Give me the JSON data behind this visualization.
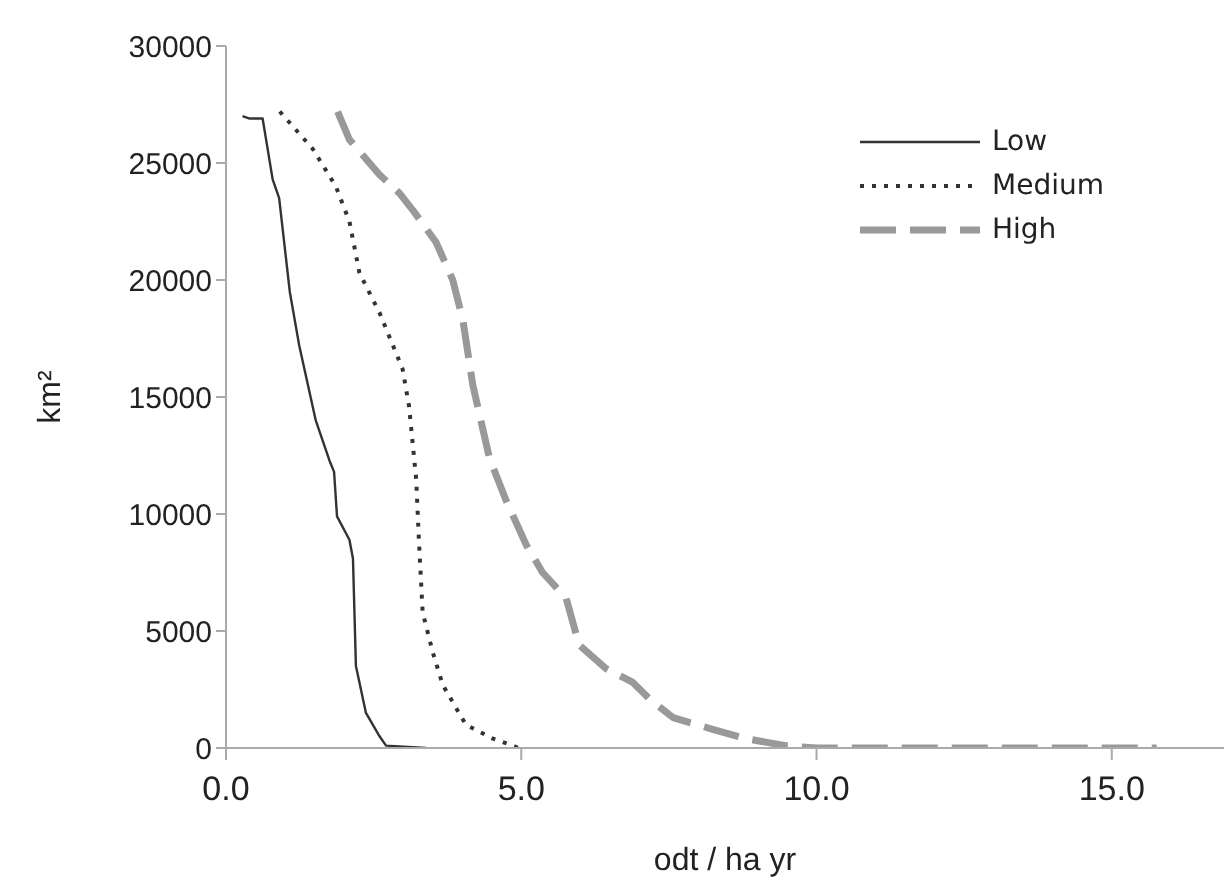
{
  "chart_data": {
    "type": "line",
    "xlabel": "odt / ha yr",
    "ylabel": "km²",
    "xlim": [
      0,
      16.9
    ],
    "xticks": [
      {
        "value": 0,
        "label": "0.0"
      },
      {
        "value": 5,
        "label": "5.0"
      },
      {
        "value": 10,
        "label": "10.0"
      },
      {
        "value": 15,
        "label": "15.0"
      }
    ],
    "ylim": [
      0,
      30000
    ],
    "yticks": [
      0,
      5000,
      10000,
      15000,
      20000,
      25000,
      30000
    ],
    "grid": false,
    "legend": "top right",
    "marker": "none",
    "series": [
      {
        "name": "Low",
        "color": "#333333",
        "line_style": "solid",
        "x": [
          0.28,
          0.4,
          0.62,
          0.79,
          0.9,
          1.08,
          1.24,
          1.52,
          1.75,
          1.83,
          1.88,
          2.09,
          2.15,
          2.2,
          2.37,
          2.6,
          2.71,
          3.39
        ],
        "values": [
          27000,
          26900,
          26900,
          24300,
          23500,
          19500,
          17200,
          14000,
          12300,
          11800,
          9900,
          8900,
          8100,
          3500,
          1500,
          500,
          100,
          0
        ]
      },
      {
        "name": "Medium",
        "color": "#333333",
        "line_style": "dotted",
        "x": [
          0.91,
          1.47,
          1.86,
          2.09,
          2.26,
          2.6,
          2.99,
          3.1,
          3.22,
          3.27,
          3.33,
          3.5,
          3.67,
          4.06,
          4.52,
          4.86,
          4.95
        ],
        "values": [
          27200,
          25600,
          24000,
          22500,
          20300,
          18600,
          16200,
          14600,
          11500,
          8700,
          5800,
          4100,
          2700,
          1000,
          400,
          100,
          0
        ]
      },
      {
        "name": "High",
        "color": "#999999",
        "line_style": "dashed",
        "x": [
          1.89,
          2.09,
          2.26,
          2.6,
          2.94,
          3.16,
          3.56,
          3.84,
          4.01,
          4.18,
          4.46,
          4.74,
          5.08,
          5.36,
          5.76,
          5.98,
          6.43,
          6.89,
          7.17,
          7.57,
          8.24,
          8.8,
          9.48,
          10.0,
          15.76
        ],
        "values": [
          27200,
          26000,
          25500,
          24500,
          23700,
          23000,
          21600,
          20000,
          18300,
          15500,
          12400,
          10600,
          8700,
          7500,
          6400,
          4400,
          3400,
          2800,
          2100,
          1300,
          800,
          400,
          100,
          0,
          0
        ]
      }
    ]
  }
}
